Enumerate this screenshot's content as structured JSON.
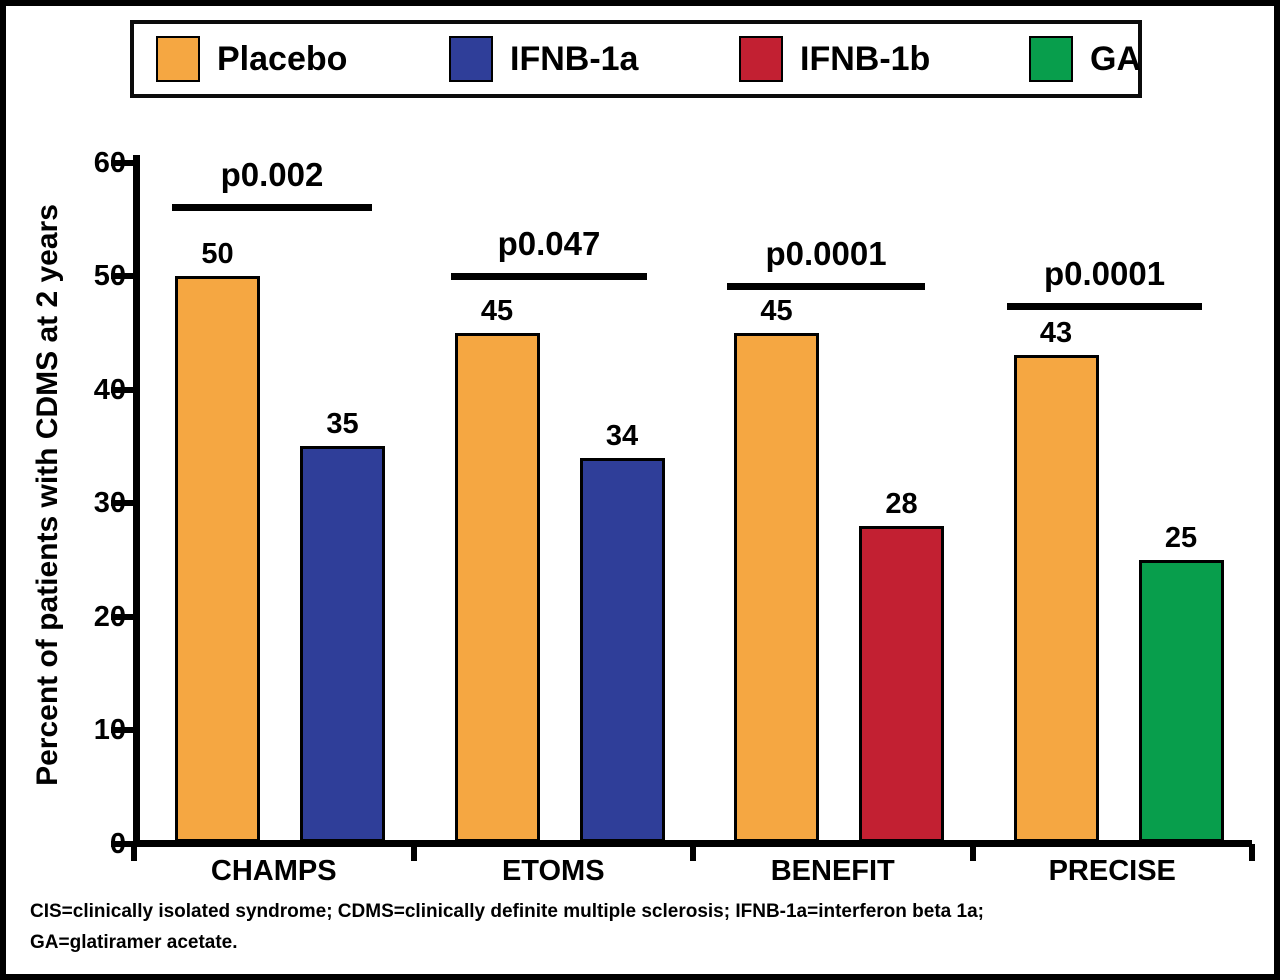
{
  "legend": {
    "items": [
      {
        "label": "Placebo",
        "color": "#F5A742"
      },
      {
        "label": "IFNB-1a",
        "color": "#2F3E99"
      },
      {
        "label": "IFNB-1b",
        "color": "#C22032"
      },
      {
        "label": "GA",
        "color": "#089E4C"
      }
    ]
  },
  "chart_data": {
    "type": "bar",
    "title": "",
    "xlabel": "",
    "ylabel": "Percent of patients with CDMS at 2 years",
    "ylim": [
      0,
      60
    ],
    "yticks": [
      0,
      10,
      20,
      30,
      40,
      50,
      60
    ],
    "grid": "off",
    "legend_position": "top",
    "categories": [
      "CHAMPS",
      "ETOMS",
      "BENEFIT",
      "PRECISE"
    ],
    "groups": [
      {
        "category": "CHAMPS",
        "p_label": "p0.002",
        "bars": [
          {
            "series": "Placebo",
            "value": 50,
            "color": "#F5A742"
          },
          {
            "series": "IFNB-1a",
            "value": 35,
            "color": "#2F3E99"
          }
        ]
      },
      {
        "category": "ETOMS",
        "p_label": "p0.047",
        "bars": [
          {
            "series": "Placebo",
            "value": 45,
            "color": "#F5A742"
          },
          {
            "series": "IFNB-1a",
            "value": 34,
            "color": "#2F3E99"
          }
        ]
      },
      {
        "category": "BENEFIT",
        "p_label": "p0.0001",
        "bars": [
          {
            "series": "Placebo",
            "value": 45,
            "color": "#F5A742"
          },
          {
            "series": "IFNB-1b",
            "value": 28,
            "color": "#C22032"
          }
        ]
      },
      {
        "category": "PRECISE",
        "p_label": "p0.0001",
        "bars": [
          {
            "series": "Placebo",
            "value": 43,
            "color": "#F5A742"
          },
          {
            "series": "GA",
            "value": 25,
            "color": "#089E4C"
          }
        ]
      }
    ]
  },
  "footnote": {
    "lines": [
      "CIS=clinically isolated syndrome; CDMS=clinically definite multiple sclerosis; IFNB-1a=interferon beta 1a;",
      "GA=glatiramer acetate."
    ]
  }
}
